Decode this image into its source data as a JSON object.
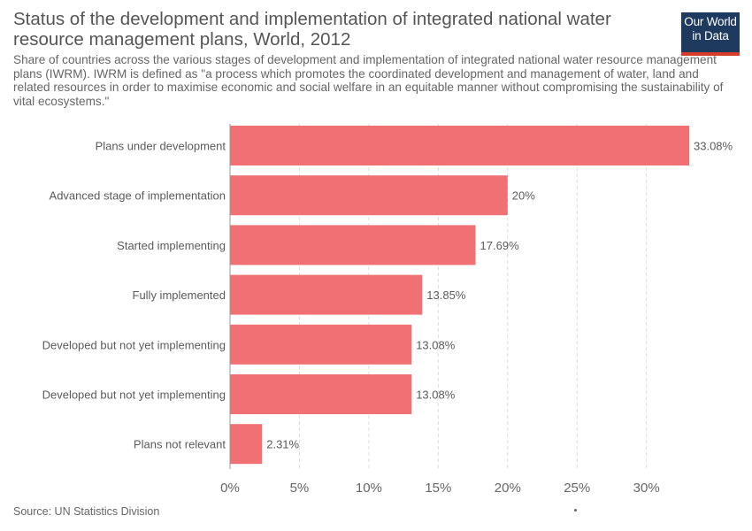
{
  "header": {
    "title": "Status of the development and implementation of integrated national water resource management plans, World, 2012",
    "subtitle": "Share of countries across the various stages of development and implementation of integrated national water resource management plans (IWRM). IWRM is defined as \"a process which promotes the coordinated development and management of water, land and related resources in order to maximise economic and social welfare in an equitable manner without compromising the sustainability of vital ecosystems.\"",
    "logo_line1": "Our World",
    "logo_line2": "in Data"
  },
  "footer": {
    "source": "Source: UN Statistics Division"
  },
  "colors": {
    "bar": "#f07073",
    "grid": "#dddddd",
    "text": "#5b5b5b",
    "logo_bg": "#1e3a5f",
    "logo_accent": "#d63b2c"
  },
  "chart_data": {
    "type": "bar",
    "orientation": "horizontal",
    "categories": [
      "Plans under development",
      "Advanced stage of implementation",
      "Started implementing",
      "Fully implemented",
      "Developed but not yet implementing",
      "Developed but not yet implementing",
      "Plans not relevant"
    ],
    "values": [
      33.08,
      20,
      17.69,
      13.85,
      13.08,
      13.08,
      2.31
    ],
    "value_labels": [
      "33.08%",
      "20%",
      "17.69%",
      "13.85%",
      "13.08%",
      "13.08%",
      "2.31%"
    ],
    "xticks": [
      0,
      5,
      10,
      15,
      20,
      25,
      30
    ],
    "xtick_labels": [
      "0%",
      "5%",
      "10%",
      "15%",
      "20%",
      "25%",
      "30%"
    ],
    "xlim": [
      0,
      33.08
    ],
    "grid": true
  }
}
